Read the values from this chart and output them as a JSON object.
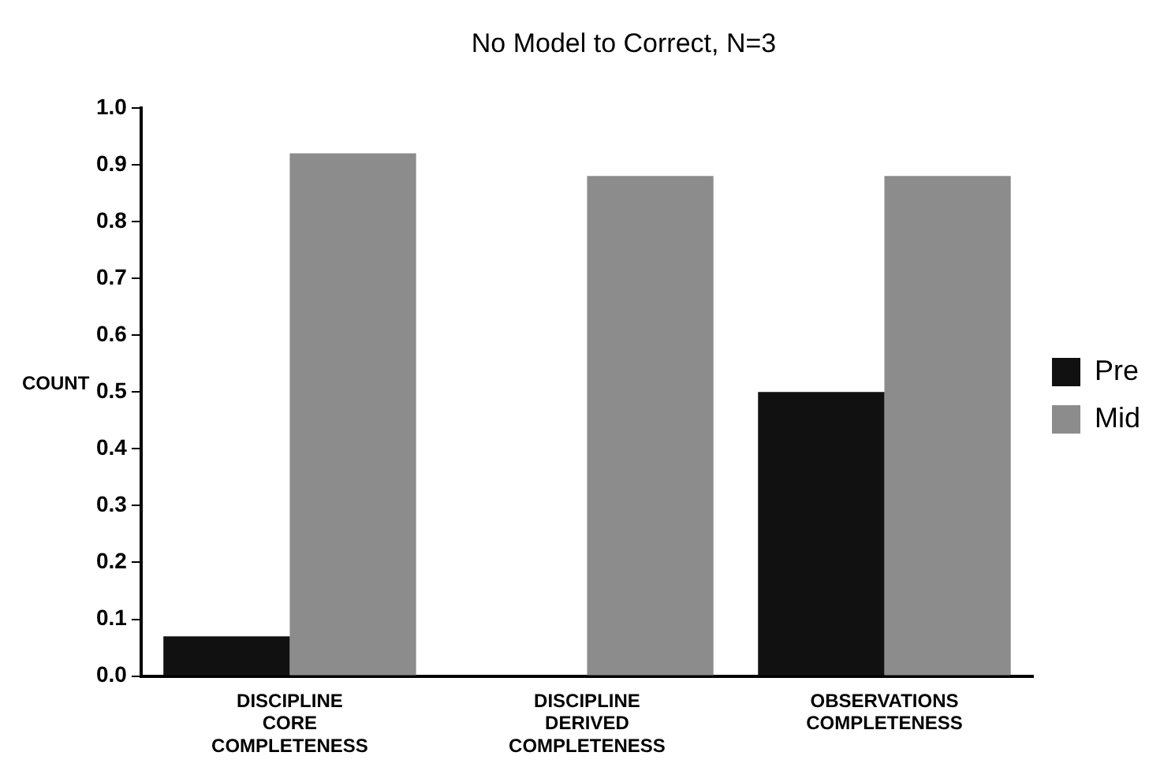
{
  "chart_data": {
    "type": "bar",
    "title": "No Model to Correct, N=3",
    "ylabel": "COUNT",
    "categories": [
      "DISCIPLINE\nCORE\nCOMPLETENESS",
      "DISCIPLINE\nDERIVED\nCOMPLETENESS",
      "OBSERVATIONS\nCOMPLETENESS"
    ],
    "series": [
      {
        "name": "Pre",
        "color": "#111111",
        "values": [
          0.07,
          0,
          0.5
        ]
      },
      {
        "name": "Mid",
        "color": "#8c8c8c",
        "values": [
          0.92,
          0.88,
          0.88
        ]
      }
    ],
    "ylim": [
      0,
      1
    ],
    "yticks": [
      {
        "value": 0,
        "label": "0.0"
      },
      0.1,
      0.2,
      0.3,
      0.4,
      0.5,
      0.6,
      0.7,
      0.8,
      0.9,
      {
        "value": 1,
        "label": "1.0"
      }
    ],
    "grid": false,
    "legend": "right"
  }
}
